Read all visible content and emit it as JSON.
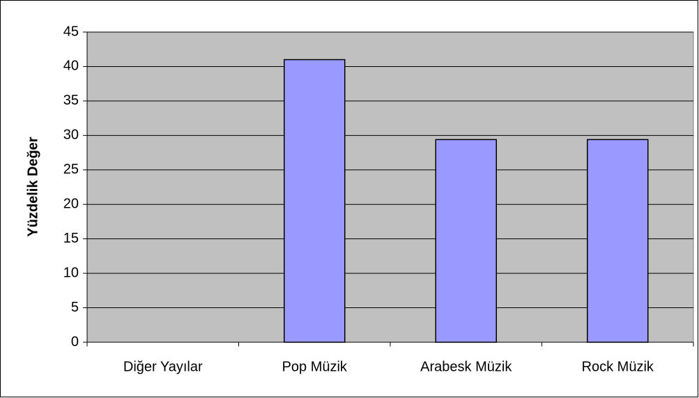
{
  "chart_data": {
    "type": "bar",
    "ylabel": "Yüzdelik Değer",
    "categories": [
      "Diğer Yayılar",
      "Pop Müzik",
      "Arabesk Müzik",
      "Rock Müzik"
    ],
    "values": [
      0,
      41,
      29.4,
      29.4
    ],
    "color": "#9999ff",
    "ylim": [
      0,
      45
    ],
    "yticks": [
      0,
      5,
      10,
      15,
      20,
      25,
      30,
      35,
      40,
      45
    ],
    "grid": true
  }
}
